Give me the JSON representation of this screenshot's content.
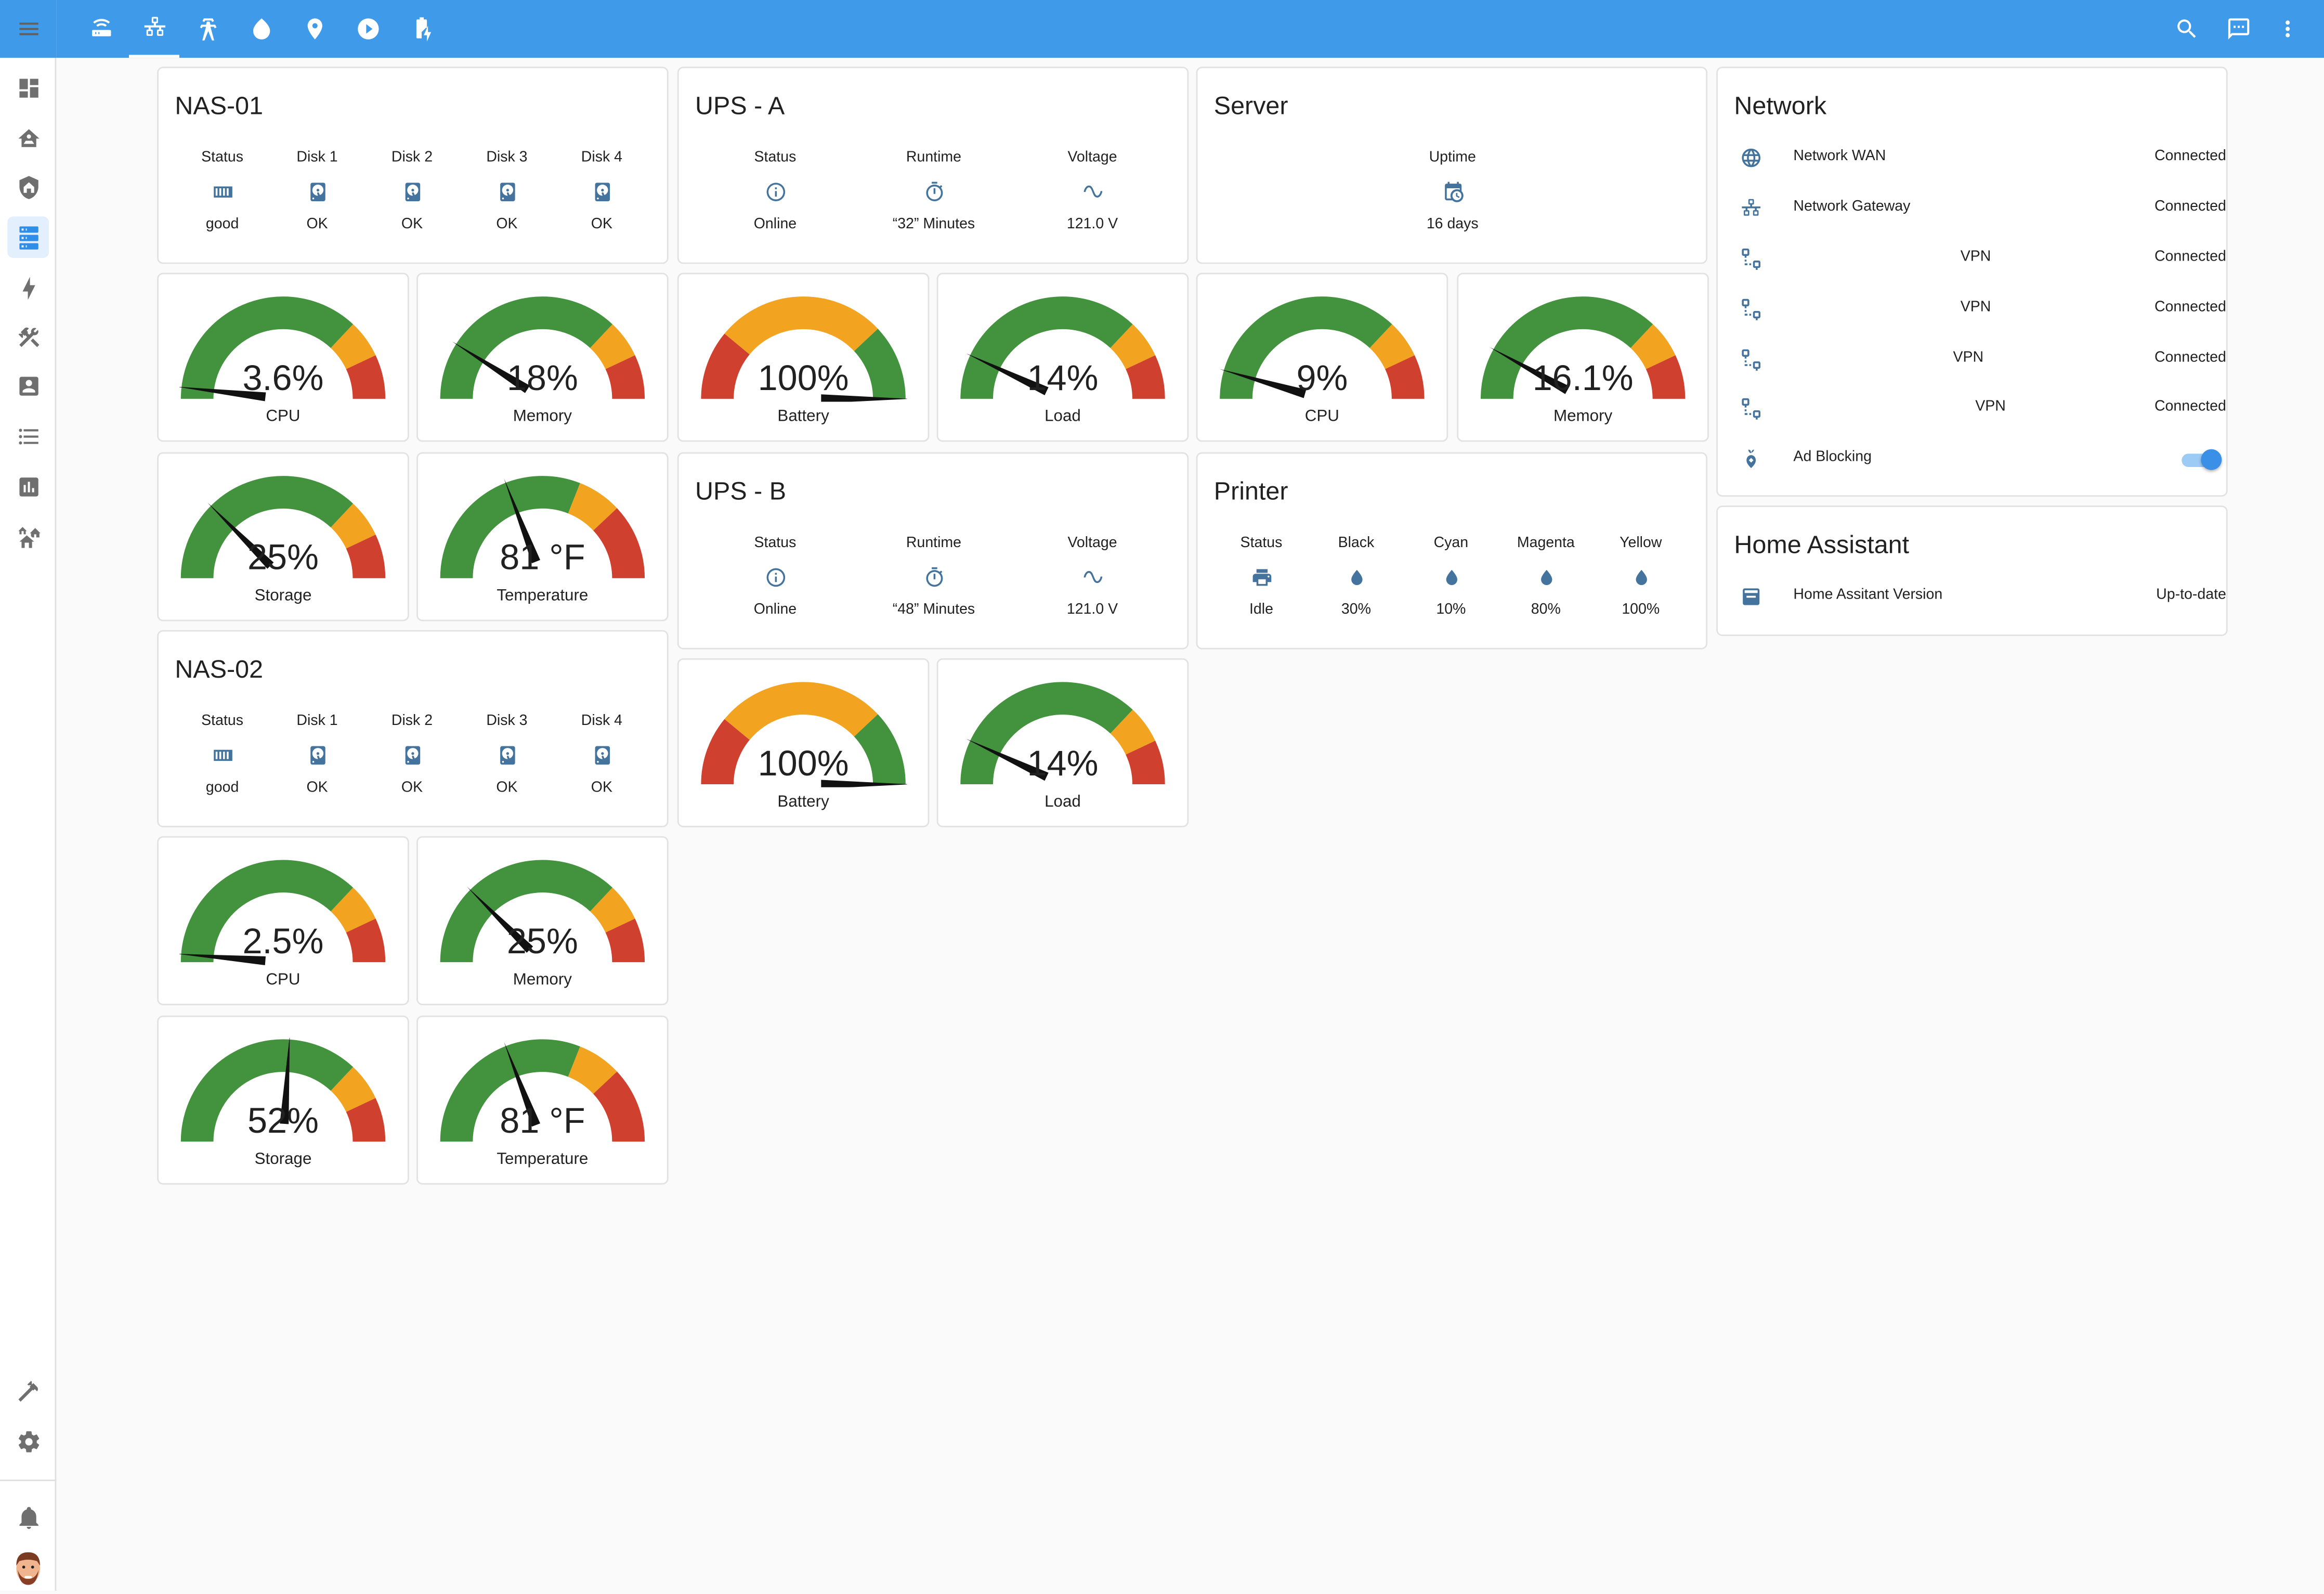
{
  "nav": {
    "sidebar_top_icons": [
      "view-dashboard-icon",
      "home-automation-icon",
      "shield-home-icon",
      "server-icon",
      "lightning-bolt-icon",
      "hammer-wrench-icon",
      "account-box-icon",
      "format-list-bulleted-icon",
      "chart-box-icon",
      "home-group-icon"
    ],
    "sidebar_active": "server-icon",
    "sidebar_bottom_icons": [
      "hammer-icon",
      "cog-icon",
      "bell-icon"
    ],
    "tabs": [
      "router-wireless-icon",
      "lan-icon",
      "transmission-tower-icon",
      "water-icon",
      "map-marker-icon",
      "play-circle-icon",
      "battery-charging-icon"
    ],
    "active_tab": "lan-icon",
    "actions": [
      "magnify-icon",
      "message-icon",
      "dots-vertical-icon"
    ]
  },
  "nas01": {
    "title": "NAS-01",
    "status": [
      {
        "label": "Status",
        "icon": "harddisk-status-icon",
        "value": "good"
      },
      {
        "label": "Disk 1",
        "icon": "harddisk-icon",
        "value": "OK"
      },
      {
        "label": "Disk 2",
        "icon": "harddisk-icon",
        "value": "OK"
      },
      {
        "label": "Disk 3",
        "icon": "harddisk-icon",
        "value": "OK"
      },
      {
        "label": "Disk 4",
        "icon": "harddisk-icon",
        "value": "OK"
      }
    ],
    "cpu": {
      "display": "3.6%",
      "name": "CPU",
      "value": 3.6,
      "min": 0,
      "max": 100
    },
    "memory": {
      "display": "18%",
      "name": "Memory",
      "value": 18,
      "min": 0,
      "max": 100
    },
    "storage": {
      "display": "25%",
      "name": "Storage",
      "value": 25,
      "min": 0,
      "max": 100
    },
    "temperature": {
      "display": "81 °F",
      "name": "Temperature",
      "value": 81,
      "min": 32,
      "max": 160
    }
  },
  "nas02": {
    "title": "NAS-02",
    "status": [
      {
        "label": "Status",
        "icon": "harddisk-status-icon",
        "value": "good"
      },
      {
        "label": "Disk 1",
        "icon": "harddisk-icon",
        "value": "OK"
      },
      {
        "label": "Disk 2",
        "icon": "harddisk-icon",
        "value": "OK"
      },
      {
        "label": "Disk 3",
        "icon": "harddisk-icon",
        "value": "OK"
      },
      {
        "label": "Disk 4",
        "icon": "harddisk-icon",
        "value": "OK"
      }
    ],
    "cpu": {
      "display": "2.5%",
      "name": "CPU",
      "value": 2.5,
      "min": 0,
      "max": 100
    },
    "memory": {
      "display": "25%",
      "name": "Memory",
      "value": 25,
      "min": 0,
      "max": 100
    },
    "storage": {
      "display": "52%",
      "name": "Storage",
      "value": 52,
      "min": 0,
      "max": 100
    },
    "temperature": {
      "display": "81 °F",
      "name": "Temperature",
      "value": 81,
      "min": 32,
      "max": 160
    }
  },
  "upsA": {
    "title": "UPS - A",
    "status": [
      {
        "label": "Status",
        "icon": "information-outline-icon",
        "value": "Online"
      },
      {
        "label": "Runtime",
        "icon": "timer-outline-icon",
        "value": "“32” Minutes"
      },
      {
        "label": "Voltage",
        "icon": "sine-wave-icon",
        "value": "121.0 V"
      }
    ],
    "battery": {
      "display": "100%",
      "name": "Battery",
      "value": 100,
      "min": 0,
      "max": 100
    },
    "load": {
      "display": "14%",
      "name": "Load",
      "value": 14,
      "min": 0,
      "max": 100
    }
  },
  "upsB": {
    "title": "UPS - B",
    "status": [
      {
        "label": "Status",
        "icon": "information-outline-icon",
        "value": "Online"
      },
      {
        "label": "Runtime",
        "icon": "timer-outline-icon",
        "value": "“48” Minutes"
      },
      {
        "label": "Voltage",
        "icon": "sine-wave-icon",
        "value": "121.0 V"
      }
    ],
    "battery": {
      "display": "100%",
      "name": "Battery",
      "value": 100,
      "min": 0,
      "max": 100
    },
    "load": {
      "display": "14%",
      "name": "Load",
      "value": 14,
      "min": 0,
      "max": 100
    }
  },
  "server": {
    "title": "Server",
    "uptime": {
      "label": "Uptime",
      "icon": "calendar-clock-icon",
      "value": "16 days"
    },
    "cpu": {
      "display": "9%",
      "name": "CPU",
      "value": 9,
      "min": 0,
      "max": 100
    },
    "memory": {
      "display": "16.1%",
      "name": "Memory",
      "value": 16.1,
      "min": 0,
      "max": 100
    }
  },
  "printer": {
    "title": "Printer",
    "status": [
      {
        "label": "Status",
        "icon": "printer-icon",
        "value": "Idle"
      },
      {
        "label": "Black",
        "icon": "water-drop-icon",
        "value": "30%"
      },
      {
        "label": "Cyan",
        "icon": "water-drop-icon",
        "value": "10%"
      },
      {
        "label": "Magenta",
        "icon": "water-drop-icon",
        "value": "80%"
      },
      {
        "label": "Yellow",
        "icon": "water-drop-icon",
        "value": "100%"
      }
    ]
  },
  "network": {
    "title": "Network",
    "rows": [
      {
        "icon": "web-icon",
        "name": "Network WAN",
        "state": "Connected"
      },
      {
        "icon": "lan-icon",
        "name": "Network Gateway",
        "state": "Connected"
      },
      {
        "icon": "lan-connect-icon",
        "name": "VPN",
        "state": "Connected"
      },
      {
        "icon": "lan-connect-icon",
        "name": "VPN",
        "state": "Connected"
      },
      {
        "icon": "lan-connect-icon",
        "name": "VPN",
        "state": "Connected"
      },
      {
        "icon": "lan-connect-icon",
        "name": "VPN",
        "state": "Connected"
      }
    ],
    "ad_blocking": {
      "name": "Ad Blocking",
      "icon": "pi-hole-icon",
      "on": true
    }
  },
  "home_assistant": {
    "title": "Home Assistant",
    "row": {
      "icon": "package-icon",
      "name": "Home Assitant Version",
      "state": "Up-to-date"
    }
  },
  "colors": {
    "green": "#43923e",
    "orange": "#f2a31f",
    "red": "#d0402f",
    "accent": "#3f9be9",
    "icon": "#44739e"
  }
}
